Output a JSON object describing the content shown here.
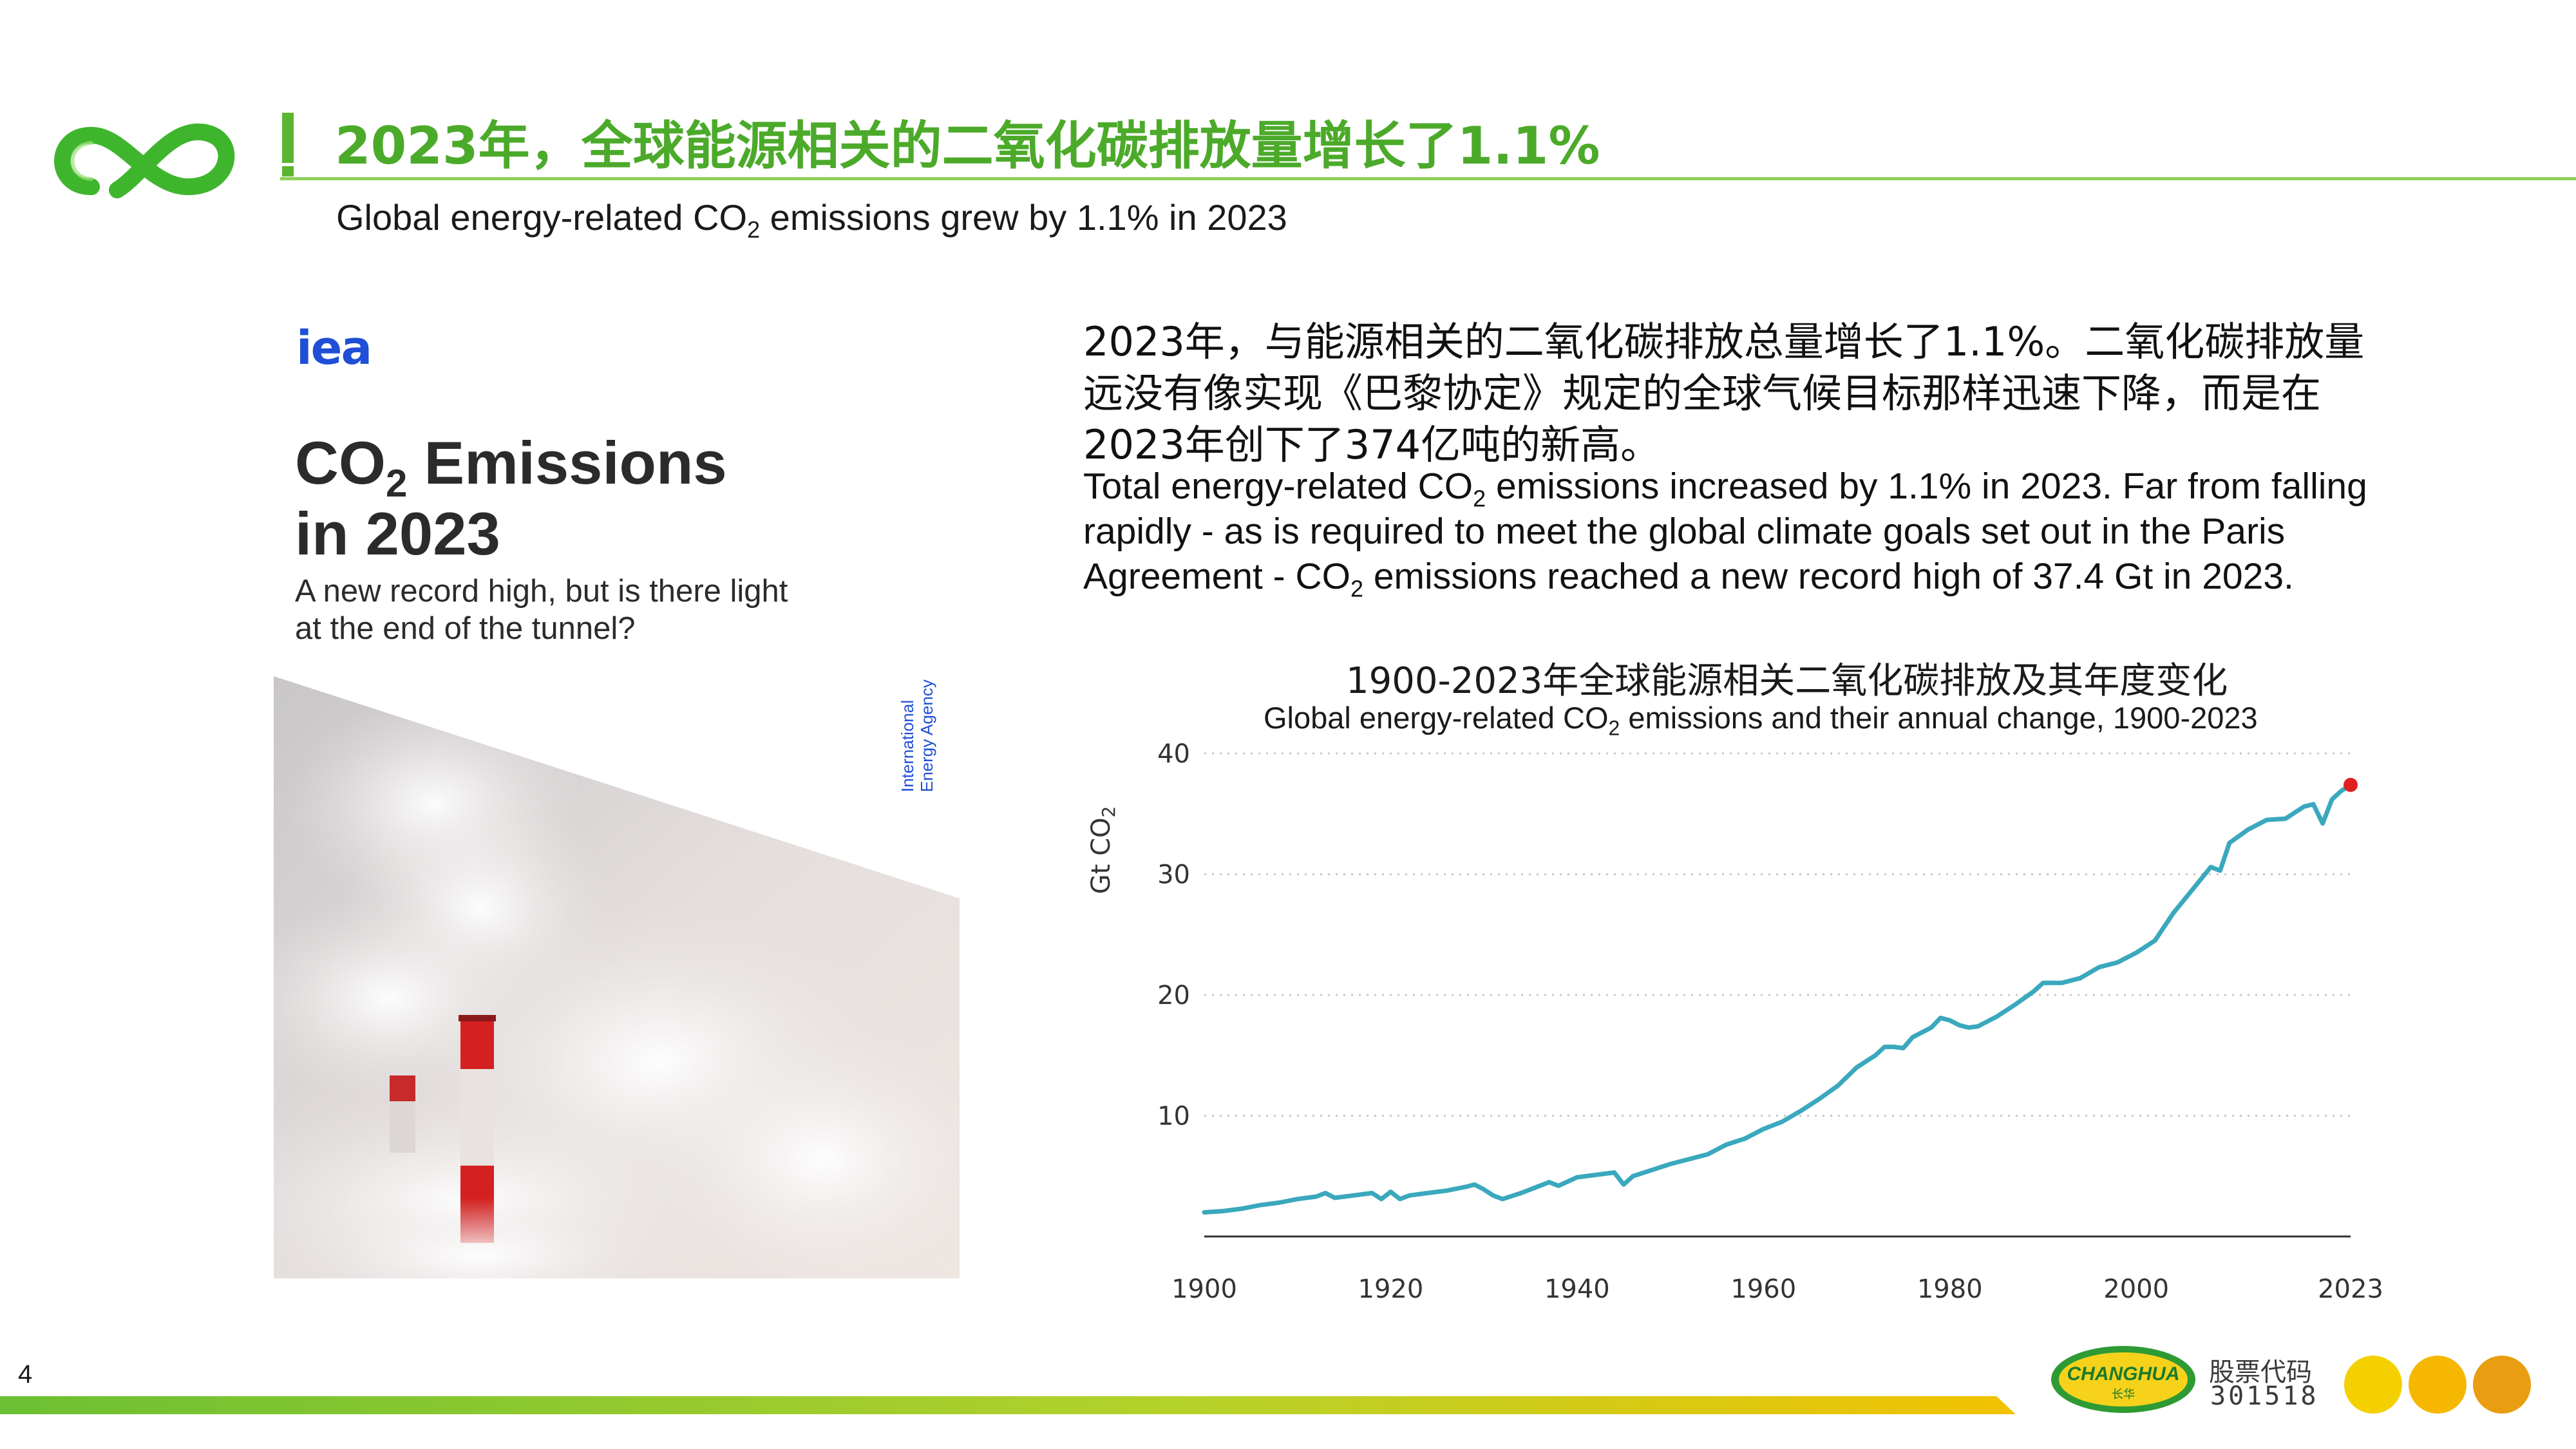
{
  "header": {
    "title": "2023年，全球能源相关的二氧化碳排放量增长了1.1%",
    "subtitle": {
      "before": "Global energy-related CO",
      "sub": "2",
      "after": " emissions grew by 1.1% in 2023"
    }
  },
  "report_cover": {
    "publisher_logo": "iea",
    "title_line1": {
      "before": "CO",
      "sub": "2",
      "after": " Emissions"
    },
    "title_line2": "in 2023",
    "subtitle_line1": "A new record high, but is there light",
    "subtitle_line2": "at the end of the tunnel?",
    "agency_line1": "International",
    "agency_line2": "Energy Agency"
  },
  "description": {
    "cn_lines": [
      "2023年，与能源相关的二氧化碳排放总量增长了1.1%。二氧化碳排放量",
      "远没有像实现《巴黎协定》规定的全球气候目标那样迅速下降，而是在",
      "2023年创下了374亿吨的新高。"
    ],
    "en_line1": {
      "before": "Total energy-related CO",
      "sub": "2",
      "after": " emissions increased by 1.1% in 2023. Far from falling"
    },
    "en_line2": "rapidly - as is required to meet the global climate goals set out in the Paris",
    "en_line3": {
      "before": "Agreement - CO",
      "sub": "2",
      "after": " emissions reached a new record high of 37.4 Gt in 2023."
    }
  },
  "chart_data": {
    "type": "line",
    "title": "1900-2023年全球能源相关二氧化碳排放及其年度变化",
    "subtitle": {
      "before": "Global energy-related CO",
      "sub": "2",
      "after": " emissions and their annual change, 1900-2023"
    },
    "ylabel": {
      "before": "Gt CO",
      "sub": "2"
    },
    "xlim": [
      1900,
      2023
    ],
    "ylim": [
      0,
      40
    ],
    "x_ticks": [
      "1900",
      "1920",
      "1940",
      "1960",
      "1980",
      "2000",
      "2023"
    ],
    "y_ticks": [
      "10",
      "20",
      "30",
      "40"
    ],
    "grid": "horizontal-dotted",
    "line_color": "#3aa8bd",
    "highlight_color": "#e02020",
    "series": [
      {
        "x": [
          1900,
          1902,
          1904,
          1906,
          1908,
          1910,
          1912,
          1913,
          1914,
          1916,
          1918,
          1919,
          1920,
          1921,
          1922,
          1924,
          1926,
          1928,
          1929,
          1930,
          1931,
          1932,
          1934,
          1936,
          1937,
          1938,
          1940,
          1942,
          1944,
          1945,
          1946,
          1948,
          1950,
          1952,
          1954,
          1956,
          1958,
          1960,
          1962,
          1964,
          1966,
          1968,
          1970,
          1972,
          1973,
          1974,
          1975,
          1976,
          1978,
          1979,
          1980,
          1981,
          1982,
          1983,
          1985,
          1987,
          1989,
          1990,
          1992,
          1994,
          1996,
          1998,
          2000,
          2002,
          2004,
          2006,
          2008,
          2009,
          2010,
          2012,
          2014,
          2016,
          2018,
          2019,
          2020,
          2021,
          2022,
          2023
        ],
        "y": [
          2.0,
          2.1,
          2.3,
          2.6,
          2.8,
          3.1,
          3.3,
          3.6,
          3.2,
          3.4,
          3.6,
          3.1,
          3.7,
          3.1,
          3.4,
          3.6,
          3.8,
          4.1,
          4.3,
          3.9,
          3.4,
          3.1,
          3.6,
          4.2,
          4.5,
          4.2,
          4.9,
          5.1,
          5.3,
          4.3,
          5.0,
          5.5,
          6.0,
          6.4,
          6.8,
          7.6,
          8.1,
          8.9,
          9.5,
          10.4,
          11.4,
          12.5,
          14.0,
          15.0,
          15.7,
          15.7,
          15.6,
          16.5,
          17.3,
          18.1,
          17.9,
          17.5,
          17.3,
          17.4,
          18.2,
          19.2,
          20.3,
          21.0,
          21.0,
          21.4,
          22.3,
          22.7,
          23.5,
          24.5,
          26.8,
          28.7,
          30.6,
          30.3,
          32.6,
          33.7,
          34.5,
          34.6,
          35.6,
          35.8,
          34.2,
          36.2,
          36.9,
          37.4
        ]
      }
    ],
    "highlight_point": {
      "x": 2023,
      "y": 37.4
    }
  },
  "footer": {
    "page_number": "4",
    "company_logo_text": "CHANGHUA",
    "stock_label": "股票代码",
    "stock_code": "301518"
  }
}
